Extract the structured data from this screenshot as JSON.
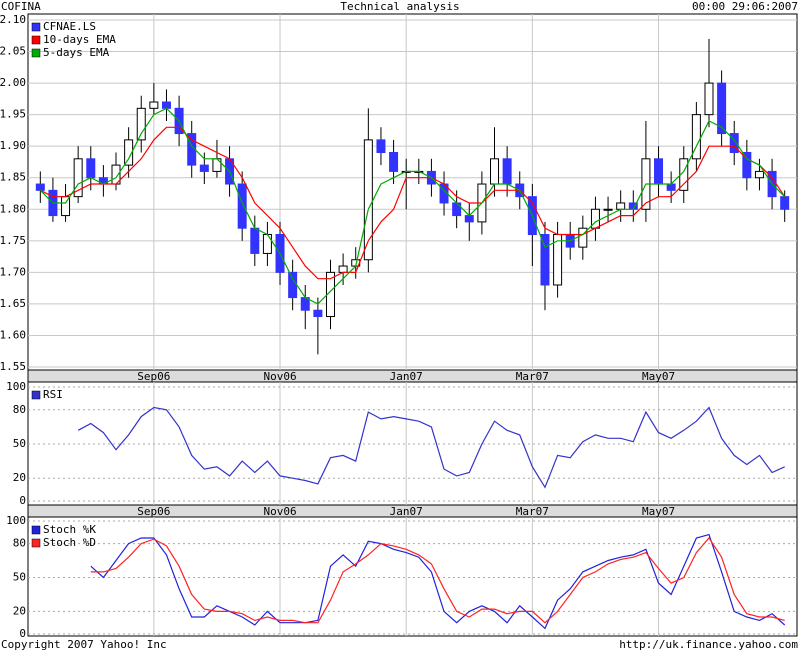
{
  "header": {
    "title": "COFINA",
    "center": "Technical analysis",
    "date": "00:00 29:06:2007"
  },
  "footer": {
    "left": "Copyright 2007 Yahoo! Inc",
    "right": "http://uk.finance.yahoo.com"
  },
  "chart_data": [
    {
      "type": "candlestick",
      "name": "CFNAE.LS",
      "color": "#3333ff",
      "categories": [
        null,
        null,
        null,
        null,
        null,
        null,
        null,
        null,
        null,
        "Sep06",
        null,
        null,
        null,
        null,
        null,
        null,
        null,
        null,
        null,
        "Nov06",
        null,
        null,
        null,
        null,
        null,
        null,
        null,
        null,
        null,
        "Jan07",
        null,
        null,
        null,
        null,
        null,
        null,
        null,
        null,
        null,
        "Mar07",
        null,
        null,
        null,
        null,
        null,
        null,
        null,
        null,
        null,
        "May07",
        null,
        null,
        null,
        null,
        null,
        null,
        null,
        null,
        null,
        null
      ],
      "open": [
        1.84,
        1.83,
        1.79,
        1.82,
        1.88,
        1.85,
        1.84,
        1.87,
        1.91,
        1.96,
        1.97,
        1.96,
        1.92,
        1.87,
        1.86,
        1.88,
        1.84,
        1.77,
        1.73,
        1.76,
        1.7,
        1.66,
        1.64,
        1.63,
        1.7,
        1.71,
        1.72,
        1.91,
        1.89,
        1.86,
        1.86,
        1.86,
        1.84,
        1.81,
        1.79,
        1.78,
        1.84,
        1.88,
        1.84,
        1.82,
        1.76,
        1.68,
        1.76,
        1.74,
        1.77,
        1.8,
        1.8,
        1.81,
        1.8,
        1.88,
        1.84,
        1.83,
        1.88,
        1.95,
        2.0,
        1.92,
        1.89,
        1.85,
        1.86,
        1.82
      ],
      "high": [
        1.86,
        1.85,
        1.84,
        1.9,
        1.9,
        1.87,
        1.89,
        1.93,
        1.98,
        2.0,
        1.99,
        1.98,
        1.94,
        1.89,
        1.91,
        1.9,
        1.86,
        1.79,
        1.78,
        1.78,
        1.72,
        1.68,
        1.66,
        1.72,
        1.73,
        1.74,
        1.96,
        1.93,
        1.91,
        1.88,
        1.88,
        1.88,
        1.86,
        1.83,
        1.81,
        1.86,
        1.93,
        1.9,
        1.86,
        1.84,
        1.78,
        1.78,
        1.78,
        1.79,
        1.82,
        1.82,
        1.83,
        1.83,
        1.94,
        1.9,
        1.86,
        1.9,
        1.97,
        2.07,
        2.02,
        1.94,
        1.91,
        1.88,
        1.88,
        1.83
      ],
      "low": [
        1.81,
        1.78,
        1.78,
        1.81,
        1.83,
        1.82,
        1.83,
        1.85,
        1.89,
        1.95,
        1.94,
        1.9,
        1.85,
        1.84,
        1.85,
        1.82,
        1.75,
        1.71,
        1.71,
        1.68,
        1.64,
        1.61,
        1.57,
        1.61,
        1.68,
        1.69,
        1.7,
        1.87,
        1.84,
        1.8,
        1.84,
        1.82,
        1.79,
        1.77,
        1.75,
        1.76,
        1.82,
        1.82,
        1.8,
        1.71,
        1.64,
        1.66,
        1.72,
        1.72,
        1.75,
        1.78,
        1.78,
        1.78,
        1.78,
        1.82,
        1.81,
        1.81,
        1.86,
        1.93,
        1.9,
        1.87,
        1.83,
        1.83,
        1.8,
        1.78
      ],
      "close": [
        1.83,
        1.79,
        1.82,
        1.88,
        1.85,
        1.84,
        1.87,
        1.91,
        1.96,
        1.97,
        1.96,
        1.92,
        1.87,
        1.86,
        1.88,
        1.84,
        1.77,
        1.73,
        1.76,
        1.7,
        1.66,
        1.64,
        1.63,
        1.7,
        1.71,
        1.72,
        1.91,
        1.89,
        1.86,
        1.86,
        1.86,
        1.84,
        1.81,
        1.79,
        1.78,
        1.84,
        1.88,
        1.84,
        1.82,
        1.76,
        1.68,
        1.76,
        1.74,
        1.77,
        1.8,
        1.8,
        1.81,
        1.8,
        1.88,
        1.84,
        1.83,
        1.88,
        1.95,
        2.0,
        1.92,
        1.89,
        1.85,
        1.86,
        1.82,
        1.8
      ],
      "series": [
        {
          "name": "10-days EMA",
          "color": "#ff0000",
          "values": [
            1.83,
            1.82,
            1.82,
            1.83,
            1.84,
            1.84,
            1.84,
            1.86,
            1.88,
            1.91,
            1.93,
            1.93,
            1.91,
            1.9,
            1.89,
            1.88,
            1.85,
            1.81,
            1.79,
            1.77,
            1.74,
            1.71,
            1.69,
            1.69,
            1.7,
            1.7,
            1.75,
            1.78,
            1.8,
            1.85,
            1.85,
            1.85,
            1.84,
            1.82,
            1.81,
            1.81,
            1.83,
            1.83,
            1.83,
            1.81,
            1.77,
            1.76,
            1.76,
            1.76,
            1.77,
            1.78,
            1.79,
            1.79,
            1.81,
            1.82,
            1.82,
            1.84,
            1.86,
            1.9,
            1.9,
            1.9,
            1.88,
            1.87,
            1.85,
            1.82
          ]
        },
        {
          "name": "5-days EMA",
          "color": "#00aa00",
          "values": [
            1.83,
            1.81,
            1.81,
            1.84,
            1.85,
            1.84,
            1.85,
            1.88,
            1.92,
            1.95,
            1.96,
            1.94,
            1.9,
            1.88,
            1.88,
            1.86,
            1.81,
            1.77,
            1.76,
            1.73,
            1.69,
            1.66,
            1.65,
            1.67,
            1.69,
            1.71,
            1.8,
            1.84,
            1.85,
            1.86,
            1.86,
            1.85,
            1.83,
            1.81,
            1.79,
            1.81,
            1.84,
            1.84,
            1.83,
            1.79,
            1.74,
            1.75,
            1.75,
            1.76,
            1.78,
            1.79,
            1.8,
            1.8,
            1.84,
            1.84,
            1.84,
            1.86,
            1.9,
            1.94,
            1.93,
            1.91,
            1.88,
            1.87,
            1.84,
            1.82
          ]
        }
      ],
      "ylim": [
        1.55,
        2.1
      ],
      "yticks": [
        1.55,
        {
          "value": 1.6,
          "label": "1.60"
        },
        1.65,
        {
          "value": 1.7,
          "label": "1.70"
        },
        1.75,
        {
          "value": 1.8,
          "label": "1.80"
        },
        1.85,
        {
          "value": 1.9,
          "label": "1.90"
        },
        1.95,
        {
          "value": 2.0,
          "label": "2.00"
        },
        2.05,
        {
          "value": 2.1,
          "label": "2.10"
        }
      ],
      "grid": true
    },
    {
      "type": "line",
      "series": [
        {
          "name": "RSI",
          "color": "#3333cc",
          "values": [
            null,
            null,
            null,
            62,
            68,
            60,
            45,
            58,
            74,
            82,
            80,
            65,
            40,
            28,
            30,
            22,
            35,
            25,
            35,
            22,
            20,
            18,
            15,
            38,
            40,
            35,
            78,
            72,
            74,
            72,
            70,
            65,
            28,
            22,
            25,
            50,
            70,
            62,
            58,
            30,
            12,
            40,
            38,
            52,
            58,
            55,
            55,
            52,
            78,
            60,
            55,
            62,
            70,
            82,
            55,
            40,
            32,
            40,
            25,
            30
          ]
        }
      ],
      "ylim": [
        0,
        100
      ],
      "yticks": [
        0,
        20,
        50,
        80,
        100
      ],
      "grid": true
    },
    {
      "type": "line",
      "series": [
        {
          "name": "Stoch %K",
          "color": "#2222dd",
          "values": [
            null,
            null,
            null,
            null,
            60,
            50,
            65,
            80,
            85,
            85,
            70,
            40,
            15,
            15,
            25,
            20,
            15,
            8,
            20,
            10,
            10,
            10,
            12,
            60,
            70,
            60,
            82,
            80,
            75,
            72,
            68,
            55,
            20,
            10,
            20,
            25,
            20,
            10,
            25,
            15,
            5,
            30,
            40,
            55,
            60,
            65,
            68,
            70,
            75,
            45,
            35,
            60,
            85,
            88,
            55,
            20,
            15,
            12,
            18,
            8
          ]
        },
        {
          "name": "Stoch %D",
          "color": "#ff2222",
          "values": [
            null,
            null,
            null,
            null,
            55,
            55,
            58,
            68,
            80,
            84,
            78,
            60,
            35,
            22,
            20,
            20,
            18,
            12,
            15,
            12,
            12,
            10,
            10,
            30,
            55,
            62,
            70,
            80,
            78,
            75,
            70,
            62,
            40,
            20,
            15,
            22,
            22,
            18,
            20,
            20,
            10,
            20,
            35,
            50,
            55,
            62,
            66,
            68,
            72,
            58,
            45,
            50,
            72,
            85,
            68,
            35,
            18,
            15,
            15,
            12
          ]
        }
      ],
      "ylim": [
        0,
        100
      ],
      "yticks": [
        0,
        20,
        50,
        80,
        100
      ],
      "grid": true
    }
  ]
}
